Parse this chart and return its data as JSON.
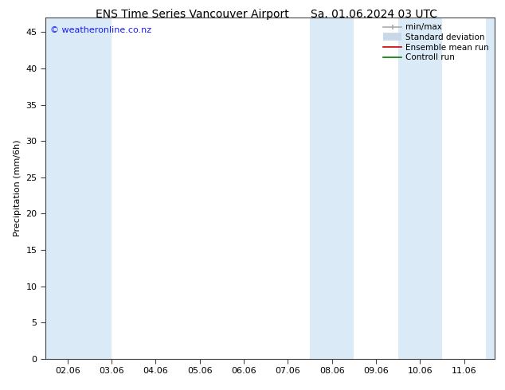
{
  "title_left": "ENS Time Series Vancouver Airport",
  "title_right": "Sa. 01.06.2024 03 UTC",
  "ylabel": "Precipitation (mm/6h)",
  "ylim": [
    0,
    47
  ],
  "yticks": [
    0,
    5,
    10,
    15,
    20,
    25,
    30,
    35,
    40,
    45
  ],
  "xtick_labels": [
    "02.06",
    "03.06",
    "04.06",
    "05.06",
    "06.06",
    "07.06",
    "08.06",
    "09.06",
    "10.06",
    "11.06"
  ],
  "xtick_positions": [
    0,
    1,
    2,
    3,
    4,
    5,
    6,
    7,
    8,
    9
  ],
  "xlim": [
    -0.5,
    9.7
  ],
  "shaded_bands": [
    {
      "x_start": -0.5,
      "x_end": 0.0
    },
    {
      "x_start": 0.0,
      "x_end": 1.0
    },
    {
      "x_start": 5.5,
      "x_end": 6.5
    },
    {
      "x_start": 7.5,
      "x_end": 8.5
    },
    {
      "x_start": 9.5,
      "x_end": 9.7
    }
  ],
  "band_color": "#daeaf7",
  "background_color": "#ffffff",
  "watermark": "© weatheronline.co.nz",
  "watermark_color": "#1a1aff",
  "legend_labels": [
    "min/max",
    "Standard deviation",
    "Ensemble mean run",
    "Controll run"
  ],
  "legend_colors_line": [
    "#aaaaaa",
    "#c0d4e8",
    "#cc0000",
    "#007700"
  ],
  "title_fontsize": 10,
  "axis_fontsize": 8,
  "tick_fontsize": 8,
  "legend_fontsize": 7.5
}
